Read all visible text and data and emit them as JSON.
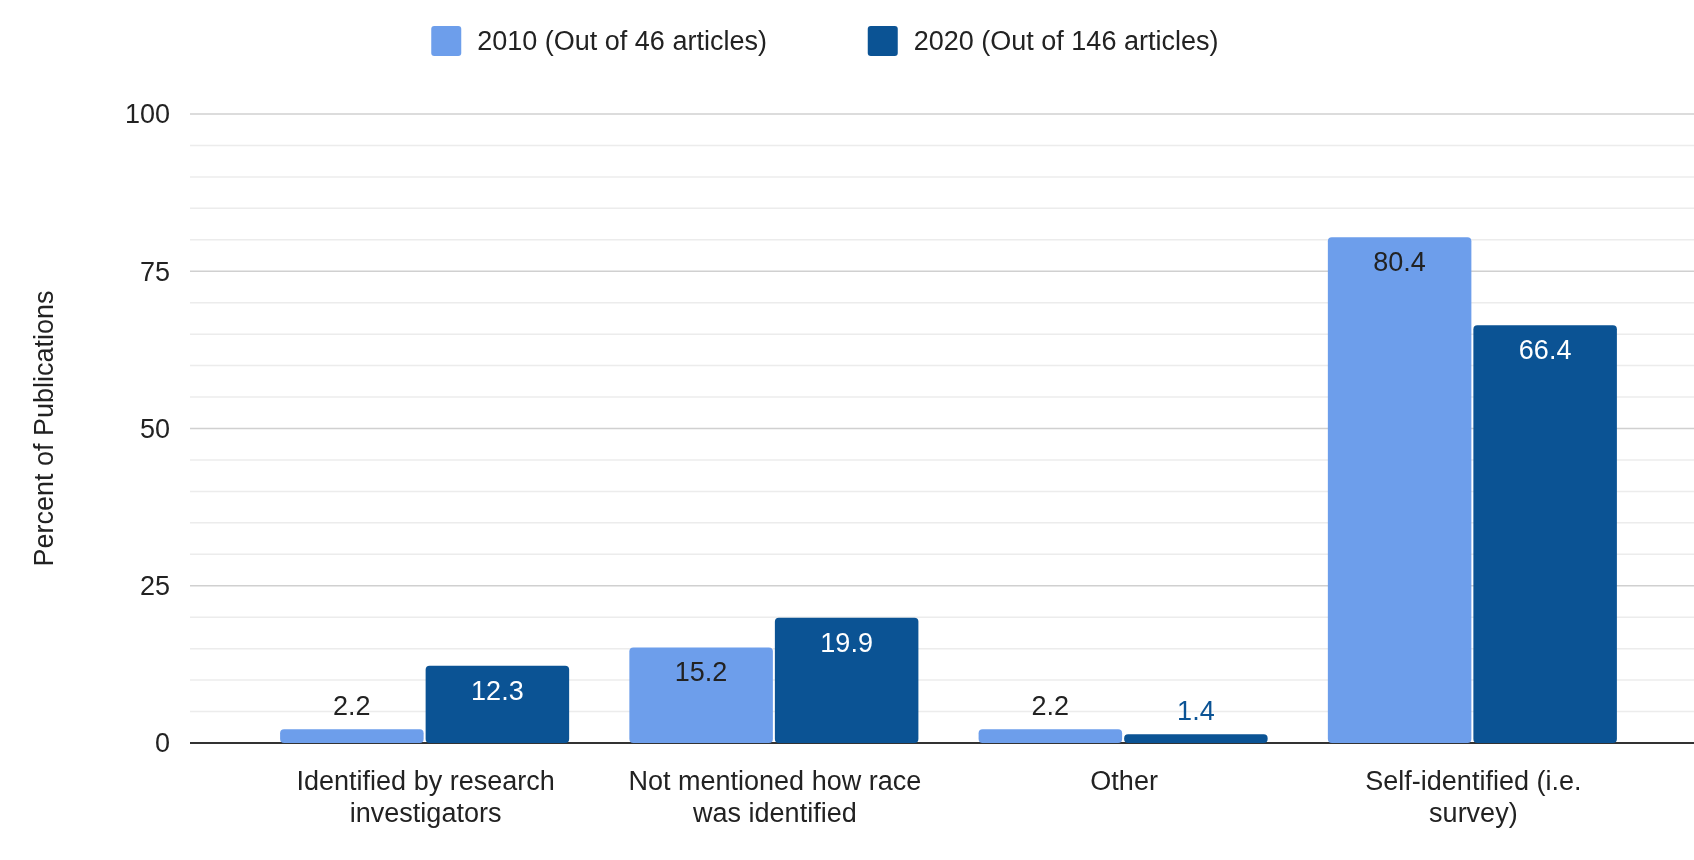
{
  "chart_data": {
    "type": "bar",
    "ylabel": "Percent of Publications",
    "categories": [
      "Identified by research investigators",
      "Not mentioned how race was identified",
      "Other",
      "Self-identified (i.e. survey)"
    ],
    "series": [
      {
        "name": "2010 (Out of 46 articles)",
        "color": "#6d9eeb",
        "values": [
          2.2,
          15.2,
          2.2,
          80.4
        ]
      },
      {
        "name": "2020 (Out of 146 articles)",
        "color": "#0b5394",
        "values": [
          12.3,
          19.9,
          1.4,
          66.4
        ]
      }
    ],
    "ylim": [
      0,
      100
    ],
    "yticks": [
      0,
      {
        "value": 5,
        "label": null
      },
      {
        "value": 10,
        "label": null
      },
      {
        "value": 15,
        "label": null
      },
      {
        "value": 20,
        "label": null
      },
      25,
      {
        "value": 30,
        "label": null
      },
      {
        "value": 35,
        "label": null
      },
      {
        "value": 40,
        "label": null
      },
      {
        "value": 45,
        "label": null
      },
      50,
      {
        "value": 55,
        "label": null
      },
      {
        "value": 60,
        "label": null
      },
      {
        "value": 65,
        "label": null
      },
      {
        "value": 70,
        "label": null
      },
      75,
      {
        "value": 80,
        "label": null
      },
      {
        "value": 85,
        "label": null
      },
      {
        "value": 90,
        "label": null
      },
      {
        "value": 95,
        "label": null
      },
      100
    ],
    "grid": true,
    "legend": "top",
    "data_labels": true
  }
}
